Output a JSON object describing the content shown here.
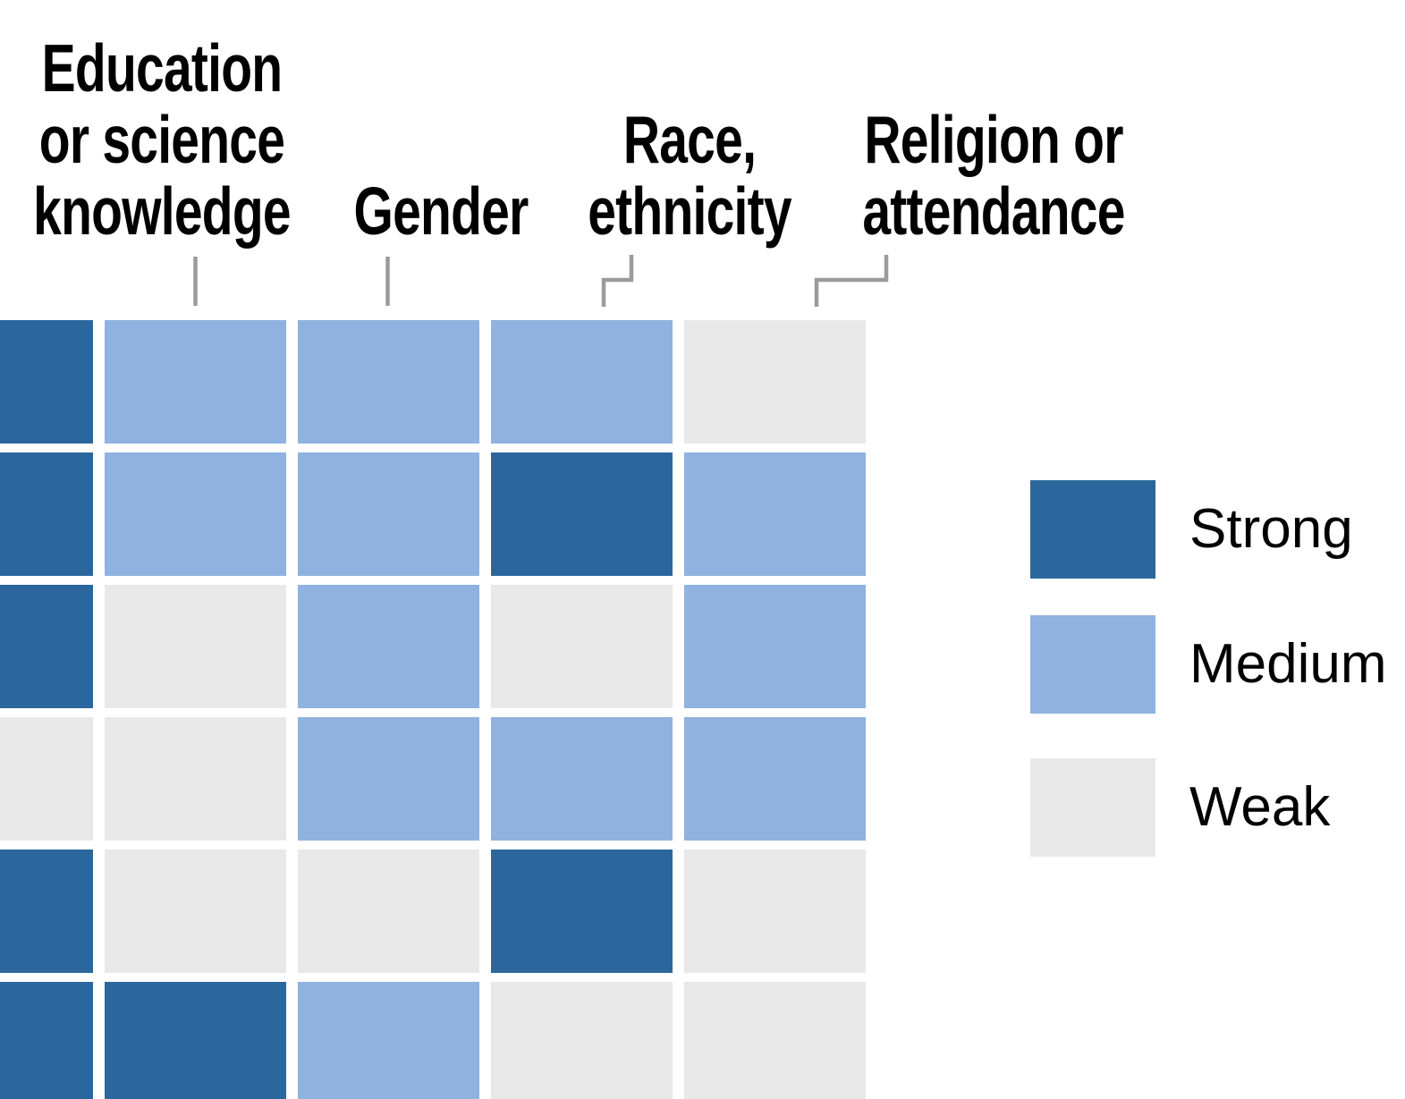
{
  "colors": {
    "strong": "#2b679c",
    "medium": "#8fb2e0",
    "weak": "#e8e8e8",
    "connector": "#9b9b9b",
    "text": "#000000",
    "background": "#ffffff"
  },
  "headers": {
    "education": {
      "lines": [
        "Education",
        "or science",
        "knowledge"
      ]
    },
    "gender": {
      "lines": [
        "Gender"
      ]
    },
    "race": {
      "lines": [
        "Race,",
        "ethnicity"
      ]
    },
    "religion": {
      "lines": [
        "Religion or",
        "attendance"
      ]
    }
  },
  "legend": {
    "position": "right",
    "items": [
      {
        "label": "Strong",
        "level": "strong"
      },
      {
        "label": "Medium",
        "level": "medium"
      },
      {
        "label": "Weak",
        "level": "weak"
      }
    ]
  },
  "chart_data": {
    "type": "heatmap",
    "value_scale": [
      "weak",
      "medium",
      "strong"
    ],
    "columns": [
      null,
      "Education or science knowledge",
      "Gender",
      "Race, ethnicity",
      "Religion or attendance"
    ],
    "notes": "First column is clipped at the left edge and unlabeled; last row is clipped at the bottom edge. Row labels are not visible in the screenshot.",
    "rows": [
      [
        "strong",
        "medium",
        "medium",
        "medium",
        "weak"
      ],
      [
        "strong",
        "medium",
        "medium",
        "strong",
        "medium"
      ],
      [
        "strong",
        "weak",
        "medium",
        "weak",
        "medium"
      ],
      [
        "weak",
        "weak",
        "medium",
        "medium",
        "medium"
      ],
      [
        "strong",
        "weak",
        "weak",
        "strong",
        "weak"
      ],
      [
        "strong",
        "strong",
        "medium",
        "weak",
        "weak"
      ]
    ]
  }
}
